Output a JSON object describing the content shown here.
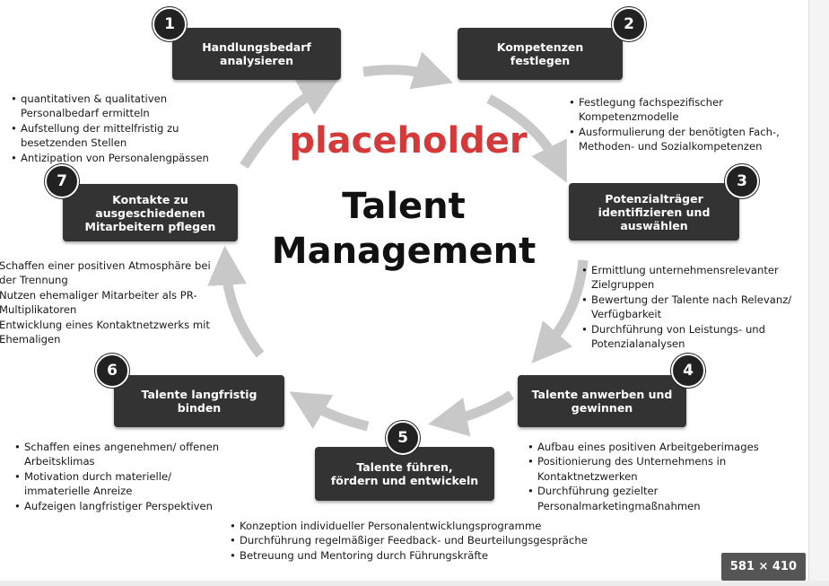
{
  "center": {
    "title_line1": "Talent",
    "title_line2": "Management"
  },
  "placeholder": {
    "text": "placeholder",
    "color": "#d43a3a"
  },
  "size_badge": {
    "text": "581 × 410"
  },
  "steps": [
    {
      "number": "1",
      "label_lines": [
        "Handlungsbedarf",
        "analysieren"
      ],
      "bullets": [
        "quantitativen & qualitativen Personalbedarf ermitteln",
        "Aufstellung der mittelfristig zu besetzenden Stellen",
        "Antizipation von Personalengpässen"
      ]
    },
    {
      "number": "2",
      "label_lines": [
        "Kompetenzen",
        "festlegen"
      ],
      "bullets": [
        "Festlegung fachspezifischer Kompetenzmodelle",
        "Ausformulierung der benötigten Fach-, Methoden- und Sozialkompetenzen"
      ]
    },
    {
      "number": "3",
      "label_lines": [
        "Potenzialträger",
        "identifizieren und",
        "auswählen"
      ],
      "bullets": [
        "Ermittlung unternehmensrelevanter Zielgruppen",
        "Bewertung der Talente nach Relevanz/ Verfügbarkeit",
        "Durchführung von Leistungs- und Potenzialanalysen"
      ]
    },
    {
      "number": "4",
      "label_lines": [
        "Talente anwerben und",
        "gewinnen"
      ],
      "bullets": [
        "Aufbau eines positiven Arbeitgeberimages",
        "Positionierung des Unternehmens in Kontaktnetzwerken",
        "Durchführung gezielter Personalmarketingmaßnahmen"
      ]
    },
    {
      "number": "5",
      "label_lines": [
        "Talente führen,",
        "fördern und entwickeln"
      ],
      "bullets": [
        "Konzeption individueller Personalentwicklungsprogramme",
        "Durchführung regelmäßiger Feedback- und Beurteilungsgespräche",
        "Betreuung und Mentoring durch Führungskräfte"
      ]
    },
    {
      "number": "6",
      "label_lines": [
        "Talente langfristig",
        "binden"
      ],
      "bullets": [
        "Schaffen eines angenehmen/ offenen Arbeitsklimas",
        "Motivation durch materielle/ immaterielle Anreize",
        "Aufzeigen langfristiger Perspektiven"
      ]
    },
    {
      "number": "7",
      "label_lines": [
        "Kontakte zu",
        "ausgeschiedenen",
        "Mitarbeitern pflegen"
      ],
      "bullets": [
        "Schaffen einer positiven Atmosphäre bei der Trennung",
        "Nutzen ehemaliger Mitarbeiter als PR-Multiplikatoren",
        "Entwicklung eines Kontaktnetzwerks mit Ehemaligen"
      ]
    }
  ],
  "colors": {
    "box": "#333333",
    "arrow": "#c8c8c8",
    "text": "#1a1a1a"
  }
}
